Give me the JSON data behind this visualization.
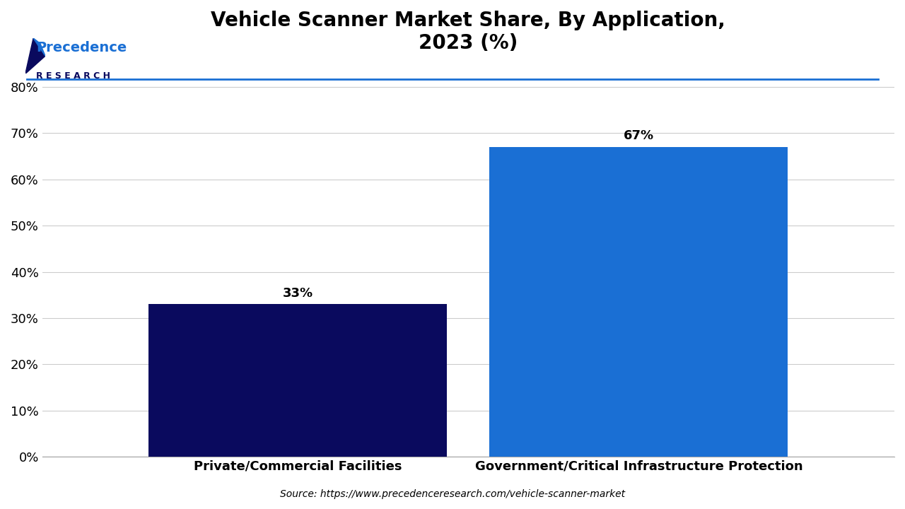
{
  "title": "Vehicle Scanner Market Share, By Application,\n2023 (%)",
  "categories": [
    "Private/Commercial Facilities",
    "Government/Critical Infrastructure Protection"
  ],
  "values": [
    33,
    67
  ],
  "bar_colors": [
    "#0a0a5e",
    "#1a6fd4"
  ],
  "ylim": [
    0,
    85
  ],
  "yticks": [
    0,
    10,
    20,
    30,
    40,
    50,
    60,
    70,
    80
  ],
  "ytick_labels": [
    "0%",
    "10%",
    "20%",
    "30%",
    "40%",
    "50%",
    "60%",
    "70%",
    "80%"
  ],
  "value_labels": [
    "33%",
    "67%"
  ],
  "source_text": "Source: https://www.precedenceresearch.com/vehicle-scanner-market",
  "background_color": "#ffffff",
  "title_fontsize": 20,
  "tick_fontsize": 13,
  "label_fontsize": 13,
  "value_fontsize": 13,
  "bar_width": 0.35,
  "logo_text1": "Precedence",
  "logo_text2": "R E S E A R C H"
}
